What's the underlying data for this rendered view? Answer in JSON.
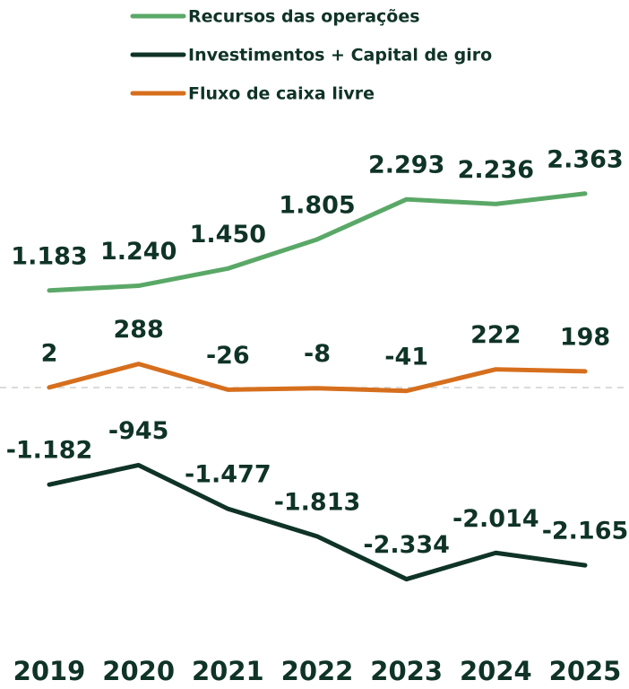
{
  "chart_data": {
    "type": "line",
    "categories": [
      "2019",
      "2020",
      "2021",
      "2022",
      "2023",
      "2024",
      "2025"
    ],
    "series": [
      {
        "name": "Recursos das operações",
        "color": "#5aa867",
        "values": [
          1183,
          1240,
          1450,
          1805,
          2293,
          2236,
          2363
        ],
        "value_labels": [
          "1.183",
          "1.240",
          "1.450",
          "1.805",
          "2.293",
          "2.236",
          "2.363"
        ]
      },
      {
        "name": "Investimentos + Capital de giro",
        "color": "#0f3327",
        "values": [
          -1182,
          -945,
          -1477,
          -1813,
          -2334,
          -2014,
          -2165
        ],
        "value_labels": [
          "-1.182",
          "-945",
          "-1.477",
          "-1.813",
          "-2.334",
          "-2.014",
          "-2.165"
        ]
      },
      {
        "name": "Fluxo de caixa livre",
        "color": "#d66f1d",
        "values": [
          2,
          288,
          -26,
          -8,
          -41,
          222,
          198
        ]
      }
    ],
    "ylim": [
      -3000,
      3000
    ]
  }
}
